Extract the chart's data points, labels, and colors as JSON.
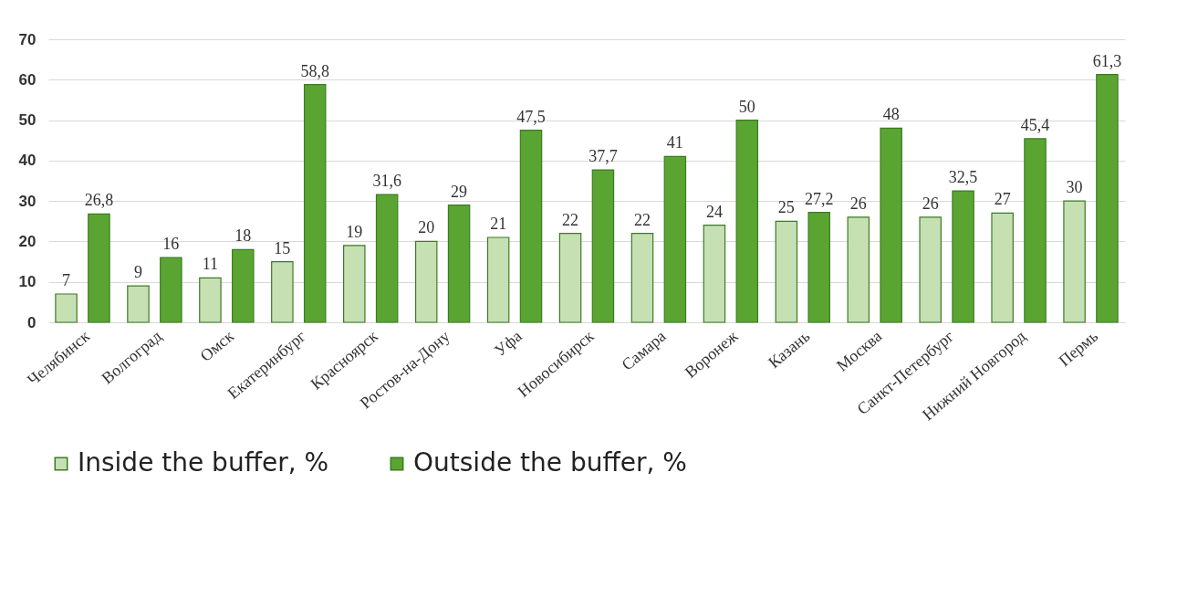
{
  "chart_data": {
    "type": "bar",
    "categories": [
      "Челябинск",
      "Волгоград",
      "Омск",
      "Екатеринбург",
      "Красноярск",
      "Ростов-на-Дону",
      "Уфа",
      "Новосибирск",
      "Самара",
      "Воронеж",
      "Казань",
      "Москва",
      "Санкт-Петербург",
      "Нижний Новгород",
      "Пермь"
    ],
    "series": [
      {
        "name": "Inside the buffer, %",
        "color": "#c6e0b4",
        "values": [
          7,
          9,
          11,
          15,
          19,
          20,
          21,
          22,
          22,
          24,
          25,
          26,
          26,
          27,
          30
        ],
        "value_labels": [
          "7",
          "9",
          "11",
          "15",
          "19",
          "20",
          "21",
          "22",
          "22",
          "24",
          "25",
          "26",
          "26",
          "27",
          "30"
        ]
      },
      {
        "name": "Outside the buffer, %",
        "color": "#5aa532",
        "values": [
          26.8,
          16,
          18,
          58.8,
          31.6,
          29,
          47.5,
          37.7,
          41,
          50,
          27.2,
          48,
          32.5,
          45.4,
          61.3
        ],
        "value_labels": [
          "26,8",
          "16",
          "18",
          "58,8",
          "31,6",
          "29",
          "47,5",
          "37,7",
          "41",
          "50",
          "27,2",
          "48",
          "32,5",
          "45,4",
          "61,3"
        ]
      }
    ],
    "ylim": [
      0,
      70
    ],
    "yticks": [
      0,
      10,
      20,
      30,
      40,
      50,
      60,
      70
    ],
    "grid": "y",
    "legend": "bottom"
  }
}
